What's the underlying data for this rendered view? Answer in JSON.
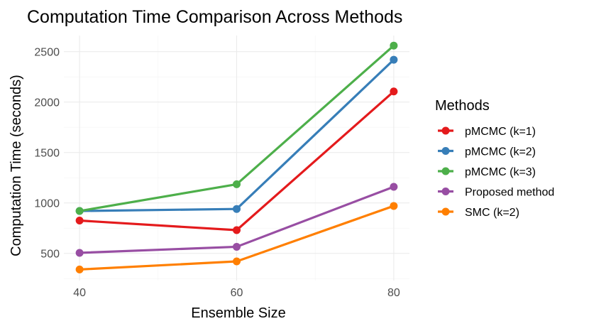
{
  "chart_data": {
    "type": "line",
    "title": "Computation Time Comparison Across Methods",
    "xlabel": "Ensemble Size",
    "ylabel": "Computation Time (seconds)",
    "x": [
      40,
      60,
      80
    ],
    "x_ticks": [
      "40",
      "60",
      "80"
    ],
    "y_ticks": [
      "500",
      "1000",
      "1500",
      "2000",
      "2500"
    ],
    "xlim": [
      38,
      82
    ],
    "ylim": [
      230,
      2660
    ],
    "grid": true,
    "legend": {
      "title": "Methods",
      "position": "right"
    },
    "series": [
      {
        "name": "pMCMC (k=1)",
        "color": "#E41A1C",
        "values": [
          825,
          730,
          2105
        ]
      },
      {
        "name": "pMCMC (k=2)",
        "color": "#377EB8",
        "values": [
          920,
          940,
          2420
        ]
      },
      {
        "name": "pMCMC (k=3)",
        "color": "#4DAF4A",
        "values": [
          920,
          1185,
          2560
        ]
      },
      {
        "name": "Proposed method",
        "color": "#984EA3",
        "values": [
          505,
          565,
          1160
        ]
      },
      {
        "name": "SMC (k=2)",
        "color": "#FF7F00",
        "values": [
          340,
          420,
          970
        ]
      }
    ]
  }
}
